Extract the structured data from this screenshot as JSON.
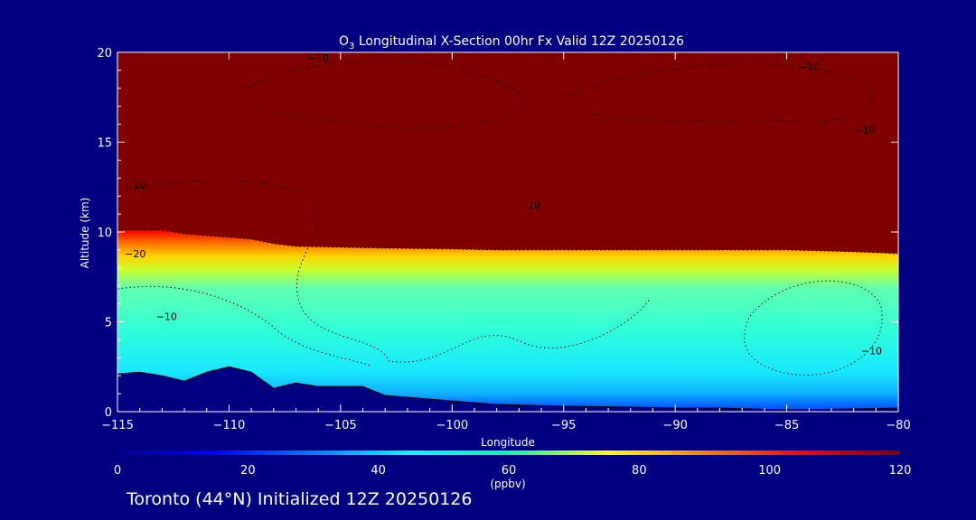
{
  "chart_data": {
    "type": "heatmap",
    "title_prefix": "O",
    "title_sub": "3",
    "title_rest": " Longitudinal X-Section 00hr  Fx Valid 12Z 20250126",
    "xlabel": "Longitude",
    "ylabel": "Altitude (km)",
    "xlim": [
      -115,
      -80
    ],
    "ylim": [
      0,
      20
    ],
    "xticks": [
      -115,
      -110,
      -105,
      -100,
      -95,
      -90,
      -85,
      -80
    ],
    "xtick_labels": [
      "−115",
      "−110",
      "−105",
      "−100",
      "−95",
      "−90",
      "−85",
      "−80"
    ],
    "yticks": [
      0,
      5,
      10,
      15,
      20
    ],
    "ytick_labels": [
      "0",
      "5",
      "10",
      "15",
      "20"
    ],
    "colorbar": {
      "min": 0,
      "max": 120,
      "ticks": [
        0,
        20,
        40,
        60,
        80,
        100,
        120
      ],
      "tick_labels": [
        "0",
        "20",
        "40",
        "60",
        "80",
        "100",
        "120"
      ],
      "unit_label": "(ppbv)"
    },
    "tropopause_height_km": {
      "x": [
        -115,
        -113,
        -112,
        -111,
        -110,
        -109,
        -108,
        -107,
        -105,
        -103,
        -100,
        -98,
        -95,
        -92,
        -90,
        -88,
        -85,
        -82,
        -80
      ],
      "y": [
        10.1,
        10.1,
        9.9,
        9.8,
        9.7,
        9.6,
        9.35,
        9.2,
        9.15,
        9.1,
        9.05,
        9.0,
        9.0,
        9.0,
        9.0,
        9.0,
        9.0,
        8.9,
        8.8
      ]
    },
    "terrain_height_km": {
      "x": [
        -115,
        -114,
        -113,
        -112,
        -111,
        -110,
        -109,
        -108,
        -107,
        -106,
        -105,
        -104,
        -103,
        -102,
        -100,
        -98,
        -95,
        -92,
        -90,
        -88,
        -85,
        -82,
        -80
      ],
      "y": [
        2.1,
        2.2,
        2.0,
        1.7,
        2.2,
        2.5,
        2.2,
        1.3,
        1.6,
        1.4,
        1.4,
        1.4,
        0.9,
        0.8,
        0.6,
        0.4,
        0.3,
        0.25,
        0.2,
        0.2,
        0.1,
        0.15,
        0.2
      ]
    },
    "contour_labels": [
      {
        "text": "−10",
        "x": -106,
        "y": 19.5
      },
      {
        "text": "−10",
        "x": -84,
        "y": 19.0
      },
      {
        "text": "−10",
        "x": -81.5,
        "y": 15.5
      },
      {
        "text": "−10",
        "x": -114.2,
        "y": 12.4
      },
      {
        "text": "−10",
        "x": -96.5,
        "y": 11.3
      },
      {
        "text": "−20",
        "x": -114.2,
        "y": 8.6
      },
      {
        "text": "−10",
        "x": -112.8,
        "y": 5.1
      },
      {
        "text": "−10",
        "x": -81.2,
        "y": 3.2
      }
    ],
    "grid": false,
    "legend": "colorbar-bottom"
  },
  "caption": "Toronto (44°N) Initialized 12Z 20250126"
}
